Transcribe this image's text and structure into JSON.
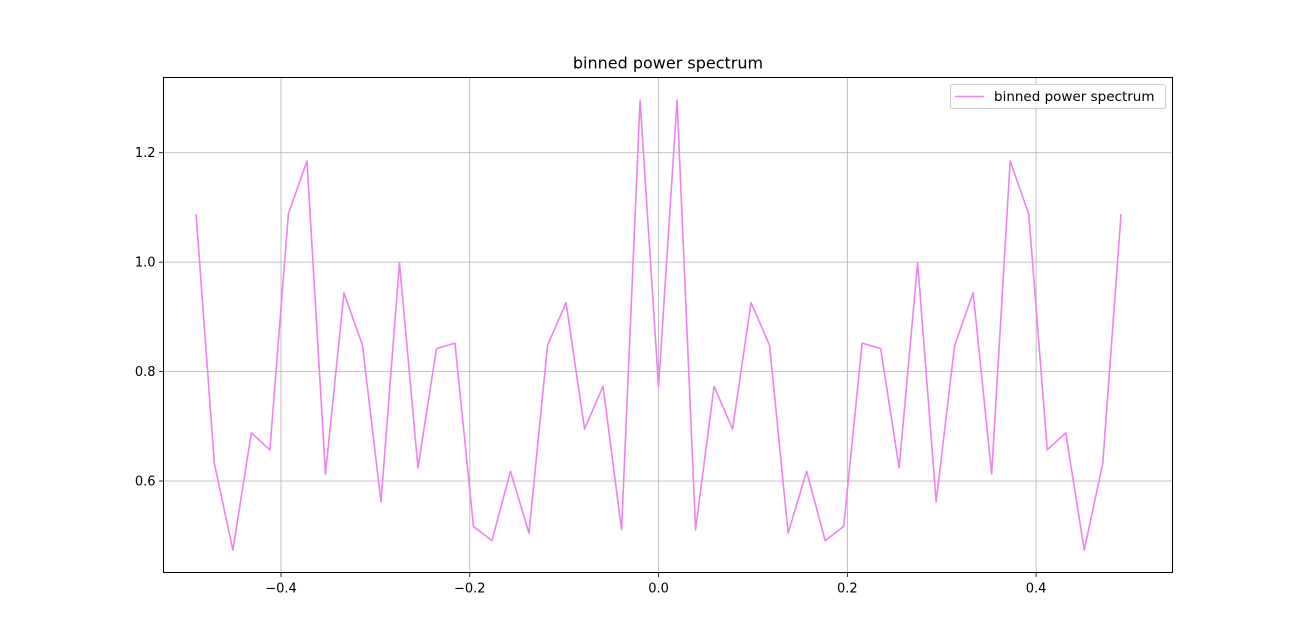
{
  "chart_data": {
    "type": "line",
    "title": "binned power spectrum",
    "xlabel": "",
    "ylabel": "",
    "xlim": [
      -0.5245,
      0.5445
    ],
    "ylim": [
      0.4328,
      1.3375
    ],
    "grid": true,
    "legend_position": "top-right",
    "xticks": [
      -0.4,
      -0.2,
      0.0,
      0.2,
      0.4
    ],
    "xtick_labels": [
      "−0.4",
      "−0.2",
      "0.0",
      "0.2",
      "0.4"
    ],
    "yticks": [
      0.6,
      0.8,
      1.0,
      1.2
    ],
    "ytick_labels": [
      "0.6",
      "0.8",
      "1.0",
      "1.2"
    ],
    "series": [
      {
        "name": "binned power spectrum",
        "color": "#ee82ee",
        "x": [
          -0.49,
          -0.4706,
          -0.451,
          -0.4314,
          -0.4118,
          -0.3922,
          -0.3725,
          -0.3529,
          -0.3333,
          -0.3137,
          -0.2941,
          -0.2745,
          -0.2549,
          -0.2353,
          -0.2157,
          -0.1961,
          -0.1765,
          -0.1569,
          -0.1373,
          -0.1176,
          -0.098,
          -0.0784,
          -0.0588,
          -0.0392,
          -0.0196,
          0.0,
          0.0196,
          0.0392,
          0.0588,
          0.0784,
          0.098,
          0.1176,
          0.1373,
          0.1569,
          0.1765,
          0.1961,
          0.2157,
          0.2353,
          0.2549,
          0.2745,
          0.2941,
          0.3137,
          0.3333,
          0.3529,
          0.3725,
          0.3922,
          0.4118,
          0.4314,
          0.451,
          0.4706,
          0.49
        ],
        "values": [
          1.088,
          0.632,
          0.474,
          0.688,
          0.657,
          1.088,
          1.185,
          0.613,
          0.944,
          0.848,
          0.562,
          0.999,
          0.624,
          0.842,
          0.852,
          0.517,
          0.491,
          0.618,
          0.505,
          0.848,
          0.926,
          0.695,
          0.773,
          0.511,
          1.296,
          0.772,
          1.296,
          0.511,
          0.773,
          0.695,
          0.926,
          0.848,
          0.505,
          0.618,
          0.491,
          0.517,
          0.852,
          0.842,
          0.624,
          0.999,
          0.562,
          0.848,
          0.944,
          0.613,
          1.185,
          1.088,
          0.657,
          0.688,
          0.474,
          0.632,
          1.088
        ]
      }
    ]
  }
}
